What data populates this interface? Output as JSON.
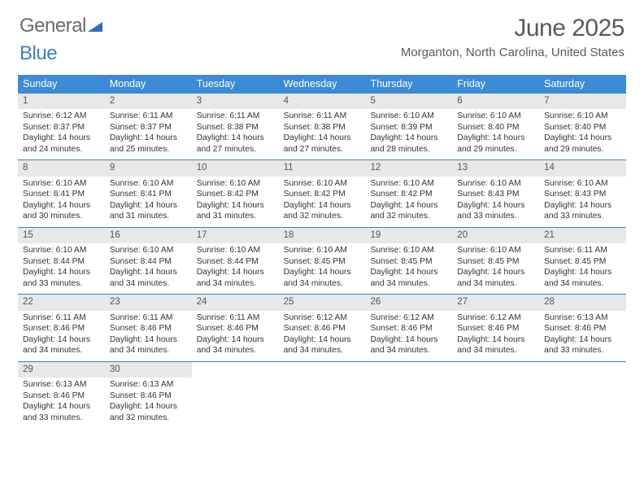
{
  "logo": {
    "word1": "General",
    "word2": "Blue"
  },
  "header": {
    "month_title": "June 2025",
    "location": "Morganton, North Carolina, United States"
  },
  "colors": {
    "header_bar": "#3d8bd4",
    "week_border": "#3d7fc4",
    "daynum_bg": "#e8e8e8",
    "logo_gray": "#6a6a6a",
    "logo_blue": "#3d7fc4",
    "title_gray": "#5a5a5a"
  },
  "day_names": [
    "Sunday",
    "Monday",
    "Tuesday",
    "Wednesday",
    "Thursday",
    "Friday",
    "Saturday"
  ],
  "weeks": [
    [
      {
        "num": "1",
        "sunrise": "Sunrise: 6:12 AM",
        "sunset": "Sunset: 8:37 PM",
        "day1": "Daylight: 14 hours",
        "day2": "and 24 minutes."
      },
      {
        "num": "2",
        "sunrise": "Sunrise: 6:11 AM",
        "sunset": "Sunset: 8:37 PM",
        "day1": "Daylight: 14 hours",
        "day2": "and 25 minutes."
      },
      {
        "num": "3",
        "sunrise": "Sunrise: 6:11 AM",
        "sunset": "Sunset: 8:38 PM",
        "day1": "Daylight: 14 hours",
        "day2": "and 27 minutes."
      },
      {
        "num": "4",
        "sunrise": "Sunrise: 6:11 AM",
        "sunset": "Sunset: 8:38 PM",
        "day1": "Daylight: 14 hours",
        "day2": "and 27 minutes."
      },
      {
        "num": "5",
        "sunrise": "Sunrise: 6:10 AM",
        "sunset": "Sunset: 8:39 PM",
        "day1": "Daylight: 14 hours",
        "day2": "and 28 minutes."
      },
      {
        "num": "6",
        "sunrise": "Sunrise: 6:10 AM",
        "sunset": "Sunset: 8:40 PM",
        "day1": "Daylight: 14 hours",
        "day2": "and 29 minutes."
      },
      {
        "num": "7",
        "sunrise": "Sunrise: 6:10 AM",
        "sunset": "Sunset: 8:40 PM",
        "day1": "Daylight: 14 hours",
        "day2": "and 29 minutes."
      }
    ],
    [
      {
        "num": "8",
        "sunrise": "Sunrise: 6:10 AM",
        "sunset": "Sunset: 8:41 PM",
        "day1": "Daylight: 14 hours",
        "day2": "and 30 minutes."
      },
      {
        "num": "9",
        "sunrise": "Sunrise: 6:10 AM",
        "sunset": "Sunset: 8:41 PM",
        "day1": "Daylight: 14 hours",
        "day2": "and 31 minutes."
      },
      {
        "num": "10",
        "sunrise": "Sunrise: 6:10 AM",
        "sunset": "Sunset: 8:42 PM",
        "day1": "Daylight: 14 hours",
        "day2": "and 31 minutes."
      },
      {
        "num": "11",
        "sunrise": "Sunrise: 6:10 AM",
        "sunset": "Sunset: 8:42 PM",
        "day1": "Daylight: 14 hours",
        "day2": "and 32 minutes."
      },
      {
        "num": "12",
        "sunrise": "Sunrise: 6:10 AM",
        "sunset": "Sunset: 8:42 PM",
        "day1": "Daylight: 14 hours",
        "day2": "and 32 minutes."
      },
      {
        "num": "13",
        "sunrise": "Sunrise: 6:10 AM",
        "sunset": "Sunset: 8:43 PM",
        "day1": "Daylight: 14 hours",
        "day2": "and 33 minutes."
      },
      {
        "num": "14",
        "sunrise": "Sunrise: 6:10 AM",
        "sunset": "Sunset: 8:43 PM",
        "day1": "Daylight: 14 hours",
        "day2": "and 33 minutes."
      }
    ],
    [
      {
        "num": "15",
        "sunrise": "Sunrise: 6:10 AM",
        "sunset": "Sunset: 8:44 PM",
        "day1": "Daylight: 14 hours",
        "day2": "and 33 minutes."
      },
      {
        "num": "16",
        "sunrise": "Sunrise: 6:10 AM",
        "sunset": "Sunset: 8:44 PM",
        "day1": "Daylight: 14 hours",
        "day2": "and 34 minutes."
      },
      {
        "num": "17",
        "sunrise": "Sunrise: 6:10 AM",
        "sunset": "Sunset: 8:44 PM",
        "day1": "Daylight: 14 hours",
        "day2": "and 34 minutes."
      },
      {
        "num": "18",
        "sunrise": "Sunrise: 6:10 AM",
        "sunset": "Sunset: 8:45 PM",
        "day1": "Daylight: 14 hours",
        "day2": "and 34 minutes."
      },
      {
        "num": "19",
        "sunrise": "Sunrise: 6:10 AM",
        "sunset": "Sunset: 8:45 PM",
        "day1": "Daylight: 14 hours",
        "day2": "and 34 minutes."
      },
      {
        "num": "20",
        "sunrise": "Sunrise: 6:10 AM",
        "sunset": "Sunset: 8:45 PM",
        "day1": "Daylight: 14 hours",
        "day2": "and 34 minutes."
      },
      {
        "num": "21",
        "sunrise": "Sunrise: 6:11 AM",
        "sunset": "Sunset: 8:45 PM",
        "day1": "Daylight: 14 hours",
        "day2": "and 34 minutes."
      }
    ],
    [
      {
        "num": "22",
        "sunrise": "Sunrise: 6:11 AM",
        "sunset": "Sunset: 8:46 PM",
        "day1": "Daylight: 14 hours",
        "day2": "and 34 minutes."
      },
      {
        "num": "23",
        "sunrise": "Sunrise: 6:11 AM",
        "sunset": "Sunset: 8:46 PM",
        "day1": "Daylight: 14 hours",
        "day2": "and 34 minutes."
      },
      {
        "num": "24",
        "sunrise": "Sunrise: 6:11 AM",
        "sunset": "Sunset: 8:46 PM",
        "day1": "Daylight: 14 hours",
        "day2": "and 34 minutes."
      },
      {
        "num": "25",
        "sunrise": "Sunrise: 6:12 AM",
        "sunset": "Sunset: 8:46 PM",
        "day1": "Daylight: 14 hours",
        "day2": "and 34 minutes."
      },
      {
        "num": "26",
        "sunrise": "Sunrise: 6:12 AM",
        "sunset": "Sunset: 8:46 PM",
        "day1": "Daylight: 14 hours",
        "day2": "and 34 minutes."
      },
      {
        "num": "27",
        "sunrise": "Sunrise: 6:12 AM",
        "sunset": "Sunset: 8:46 PM",
        "day1": "Daylight: 14 hours",
        "day2": "and 34 minutes."
      },
      {
        "num": "28",
        "sunrise": "Sunrise: 6:13 AM",
        "sunset": "Sunset: 8:46 PM",
        "day1": "Daylight: 14 hours",
        "day2": "and 33 minutes."
      }
    ],
    [
      {
        "num": "29",
        "sunrise": "Sunrise: 6:13 AM",
        "sunset": "Sunset: 8:46 PM",
        "day1": "Daylight: 14 hours",
        "day2": "and 33 minutes."
      },
      {
        "num": "30",
        "sunrise": "Sunrise: 6:13 AM",
        "sunset": "Sunset: 8:46 PM",
        "day1": "Daylight: 14 hours",
        "day2": "and 32 minutes."
      },
      {
        "empty": true
      },
      {
        "empty": true
      },
      {
        "empty": true
      },
      {
        "empty": true
      },
      {
        "empty": true
      }
    ]
  ]
}
